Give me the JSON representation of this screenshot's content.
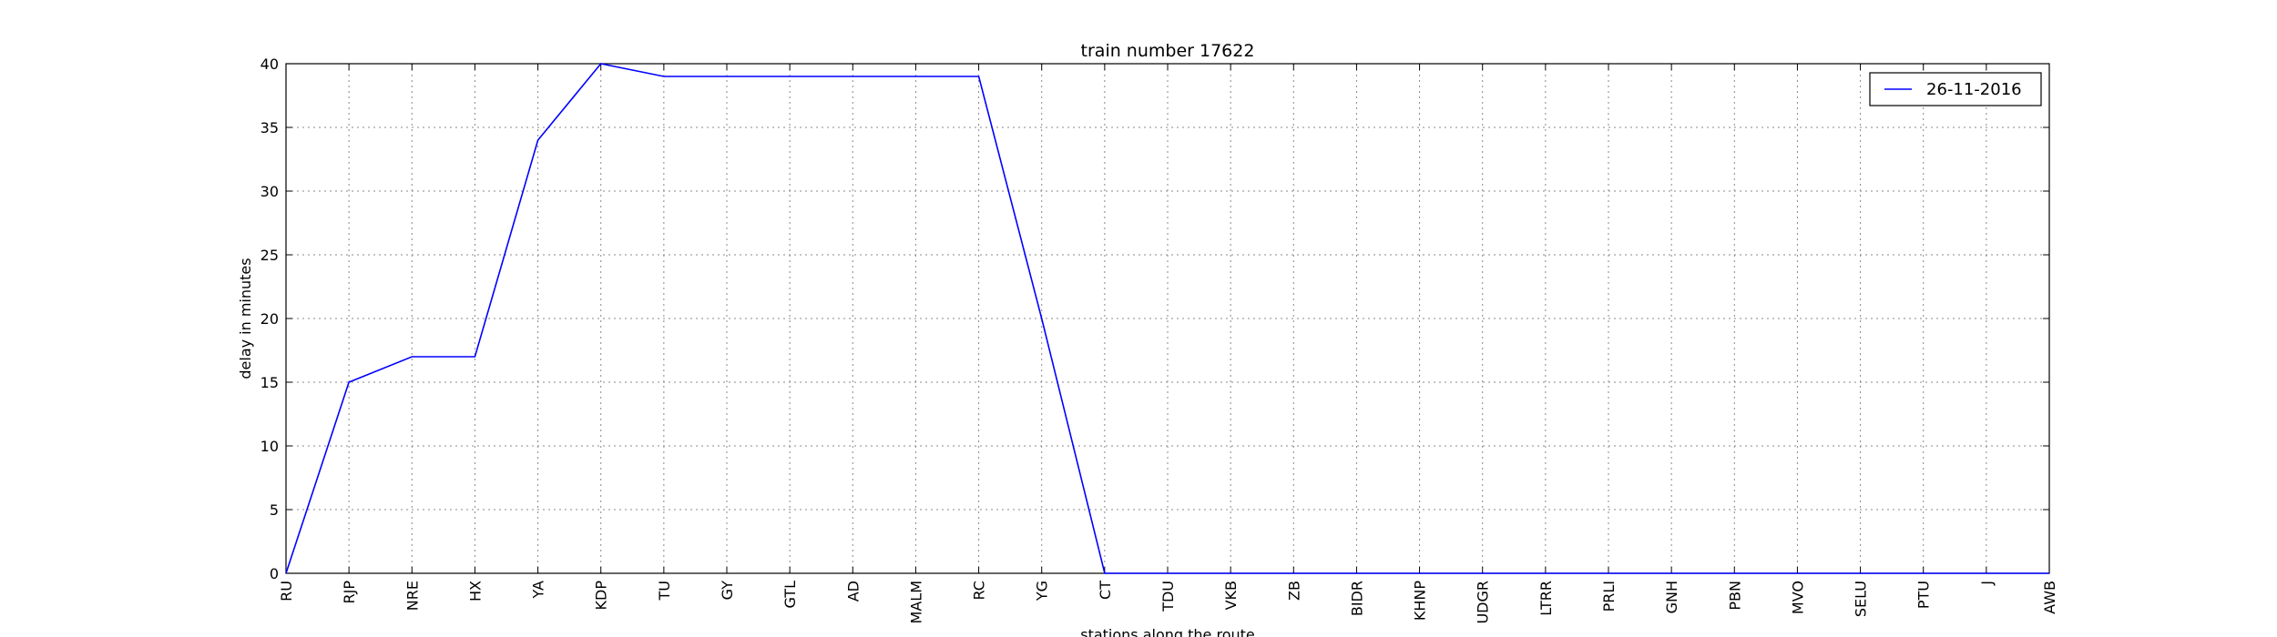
{
  "chart_data": {
    "type": "line",
    "title": "train number 17622",
    "xlabel": "stations along the route",
    "ylabel": "delay in minutes",
    "ylim": [
      0,
      40
    ],
    "yticks": [
      0,
      5,
      10,
      15,
      20,
      25,
      30,
      35,
      40
    ],
    "grid": true,
    "legend_position": "top-right",
    "categories": [
      "RU",
      "RJP",
      "NRE",
      "HX",
      "YA",
      "KDP",
      "TU",
      "GY",
      "GTL",
      "AD",
      "MALM",
      "RC",
      "YG",
      "CT",
      "TDU",
      "VKB",
      "ZB",
      "BIDR",
      "KHNP",
      "UDGR",
      "LTRR",
      "PRLI",
      "GNH",
      "PBN",
      "MVO",
      "SELU",
      "PTU",
      "J",
      "AWB"
    ],
    "series": [
      {
        "name": "26-11-2016",
        "color": "#0000ff",
        "values": [
          0,
          15,
          17,
          17,
          34,
          40,
          39,
          39,
          39,
          39,
          39,
          39,
          20,
          0,
          0,
          0,
          0,
          0,
          0,
          0,
          0,
          0,
          0,
          0,
          0,
          0,
          0,
          0,
          0
        ]
      }
    ]
  }
}
